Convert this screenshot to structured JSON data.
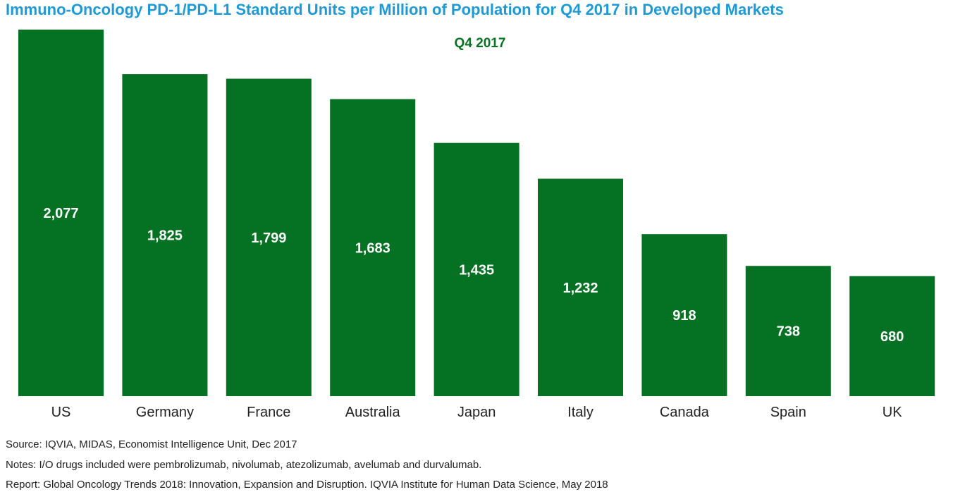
{
  "title": "Immuno-Oncology PD-1/PD-L1 Standard Units per Million of Population for Q4 2017 in Developed Markets",
  "colors": {
    "title": "#1d9ad6",
    "bar": "#057122",
    "bar_label": "#ffffff",
    "subtitle": "#057122"
  },
  "chart_data": {
    "type": "bar",
    "subtitle": "Q4 2017",
    "categories": [
      "US",
      "Germany",
      "France",
      "Australia",
      "Japan",
      "Italy",
      "Canada",
      "Spain",
      "UK"
    ],
    "values": [
      2077,
      1825,
      1799,
      1683,
      1435,
      1232,
      918,
      738,
      680
    ],
    "value_labels": [
      "2,077",
      "1,825",
      "1,799",
      "1,683",
      "1,435",
      "1,232",
      "918",
      "738",
      "680"
    ],
    "ylim": [
      0,
      2077
    ],
    "grid": false,
    "legend": "none"
  },
  "footer": {
    "source": "Source: IQVIA, MIDAS, Economist Intelligence Unit, Dec 2017",
    "notes": "Notes: I/O drugs included were pembrolizumab, nivolumab, atezolizumab, avelumab and durvalumab.",
    "report": "Report: Global Oncology Trends 2018: Innovation, Expansion and Disruption. IQVIA Institute for Human Data Science, May 2018"
  }
}
